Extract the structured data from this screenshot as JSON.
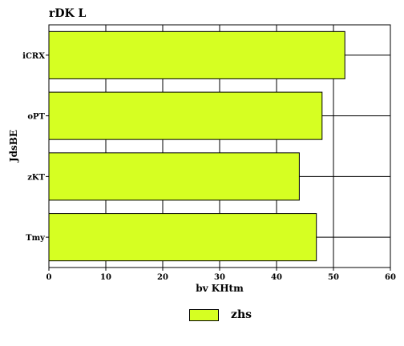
{
  "chart_data": {
    "type": "bar",
    "orientation": "horizontal",
    "title": "rDK  L",
    "xlabel": "bv KHtm",
    "ylabel": "JdsBE",
    "categories": [
      "iCRX",
      "oPT",
      "zKT",
      "Tmy"
    ],
    "series": [
      {
        "name": "zhs",
        "values": [
          52,
          48,
          44,
          47
        ],
        "color": "#d6ff22"
      }
    ],
    "xlim": [
      0,
      60
    ],
    "xticks": [
      0,
      10,
      20,
      30,
      40,
      50,
      60
    ],
    "grid": true,
    "legend_position": "bottom"
  }
}
